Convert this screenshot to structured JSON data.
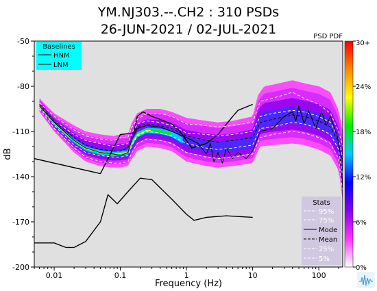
{
  "chart_data": {
    "type": "heatmap",
    "title_line1": "YM.NJ303.--.CH2 : 310 PSDs",
    "title_line2": "26-JUN-2021 / 02-JUL-2021",
    "xlabel": "Frequency (Hz)",
    "ylabel": "dB",
    "x_scale": "log",
    "xlim": [
      0.005,
      230
    ],
    "ylim": [
      -200,
      -50
    ],
    "x_ticks": [
      {
        "value": 0.01,
        "label": "0.01"
      },
      {
        "value": 0.1,
        "label": "0.1"
      },
      {
        "value": 1,
        "label": "1"
      },
      {
        "value": 10,
        "label": "10"
      },
      {
        "value": 100,
        "label": "100"
      }
    ],
    "y_ticks": [
      {
        "value": -50,
        "label": "-50"
      },
      {
        "value": -80,
        "label": "-80"
      },
      {
        "value": -110,
        "label": "-110"
      },
      {
        "value": -140,
        "label": "-140"
      },
      {
        "value": -170,
        "label": "-170"
      },
      {
        "value": -200,
        "label": "-200"
      }
    ],
    "grid": false,
    "background_color": "#e0e0e0",
    "colorbar": {
      "title": "PSD PDF",
      "tick_labels": [
        "0%",
        "6%",
        "12%",
        "18%",
        "24%",
        "30+"
      ],
      "colors": [
        "#ffffff",
        "#ff33ff",
        "#8800ee",
        "#0000ff",
        "#00ccff",
        "#00ee00",
        "#ffff00",
        "#ff8800",
        "#ff0000"
      ]
    },
    "baselines_legend": {
      "title": "Baselines",
      "entries": [
        "HNM",
        "LNM"
      ],
      "background": "#00ffff"
    },
    "stats_legend": {
      "title": "Stats",
      "entries": [
        "95%",
        "75%",
        "Mode",
        "Mean",
        "25%",
        "5%"
      ],
      "background": "#d0c8e0"
    },
    "series": [
      {
        "name": "HNM",
        "color": "#000000",
        "points": [
          [
            0.005,
            -128
          ],
          [
            0.05,
            -138
          ],
          [
            0.1,
            -112
          ],
          [
            0.16,
            -111
          ],
          [
            0.18,
            -100
          ],
          [
            0.22,
            -97
          ],
          [
            0.3,
            -100
          ],
          [
            0.4,
            -102
          ],
          [
            0.6,
            -105
          ],
          [
            0.8,
            -110
          ],
          [
            1,
            -116
          ],
          [
            1.2,
            -121
          ],
          [
            2,
            -118
          ],
          [
            3,
            -112
          ],
          [
            5,
            -100
          ],
          [
            6,
            -96
          ],
          [
            10,
            -92
          ]
        ]
      },
      {
        "name": "LNM",
        "color": "#000000",
        "points": [
          [
            0.005,
            -184
          ],
          [
            0.01,
            -184
          ],
          [
            0.015,
            -187
          ],
          [
            0.02,
            -187
          ],
          [
            0.03,
            -183
          ],
          [
            0.05,
            -170
          ],
          [
            0.065,
            -152
          ],
          [
            0.09,
            -158
          ],
          [
            0.13,
            -150
          ],
          [
            0.2,
            -141
          ],
          [
            0.3,
            -142
          ],
          [
            0.6,
            -155
          ],
          [
            1,
            -165
          ],
          [
            1.3,
            -169
          ],
          [
            2,
            -167
          ],
          [
            4,
            -166
          ],
          [
            10,
            -167
          ]
        ]
      },
      {
        "name": "95%",
        "color": "#ffffff",
        "points": [
          [
            0.006,
            -91
          ],
          [
            0.01,
            -100
          ],
          [
            0.02,
            -109
          ],
          [
            0.03,
            -113
          ],
          [
            0.05,
            -115
          ],
          [
            0.08,
            -116
          ],
          [
            0.1,
            -114
          ],
          [
            0.13,
            -114
          ],
          [
            0.15,
            -107
          ],
          [
            0.18,
            -102
          ],
          [
            0.25,
            -98
          ],
          [
            0.4,
            -98
          ],
          [
            0.6,
            -100
          ],
          [
            1,
            -105
          ],
          [
            2,
            -106
          ],
          [
            3,
            -107
          ],
          [
            5,
            -106
          ],
          [
            10,
            -104
          ],
          [
            13,
            -90
          ],
          [
            20,
            -88
          ],
          [
            40,
            -84
          ],
          [
            60,
            -88
          ],
          [
            100,
            -92
          ],
          [
            150,
            -98
          ],
          [
            200,
            -110
          ],
          [
            230,
            -120
          ]
        ]
      },
      {
        "name": "75%",
        "color": "#ffffff",
        "points": [
          [
            0.006,
            -92
          ],
          [
            0.01,
            -103
          ],
          [
            0.02,
            -112
          ],
          [
            0.03,
            -116
          ],
          [
            0.05,
            -118
          ],
          [
            0.08,
            -120
          ],
          [
            0.1,
            -119
          ],
          [
            0.13,
            -118
          ],
          [
            0.15,
            -111
          ],
          [
            0.18,
            -105
          ],
          [
            0.25,
            -103
          ],
          [
            0.4,
            -104
          ],
          [
            0.6,
            -106
          ],
          [
            1,
            -111
          ],
          [
            2,
            -112
          ],
          [
            3,
            -113
          ],
          [
            5,
            -112
          ],
          [
            10,
            -110
          ],
          [
            13,
            -100
          ],
          [
            20,
            -98
          ],
          [
            40,
            -96
          ],
          [
            60,
            -97
          ],
          [
            100,
            -100
          ],
          [
            150,
            -104
          ],
          [
            200,
            -115
          ],
          [
            230,
            -128
          ]
        ]
      },
      {
        "name": "Mode",
        "color": "#000000",
        "points": [
          [
            0.006,
            -93
          ],
          [
            0.01,
            -104
          ],
          [
            0.02,
            -116
          ],
          [
            0.03,
            -121
          ],
          [
            0.05,
            -124
          ],
          [
            0.08,
            -125
          ],
          [
            0.1,
            -126
          ],
          [
            0.13,
            -124
          ],
          [
            0.15,
            -115
          ],
          [
            0.18,
            -108
          ],
          [
            0.25,
            -106
          ],
          [
            0.4,
            -107
          ],
          [
            0.6,
            -110
          ],
          [
            1,
            -114
          ],
          [
            1.5,
            -118
          ],
          [
            2,
            -125
          ],
          [
            2.3,
            -118
          ],
          [
            2.6,
            -130
          ],
          [
            3,
            -124
          ],
          [
            3.5,
            -131
          ],
          [
            4,
            -121
          ],
          [
            5,
            -128
          ],
          [
            6,
            -124
          ],
          [
            8,
            -128
          ],
          [
            10,
            -123
          ],
          [
            13,
            -110
          ],
          [
            20,
            -108
          ],
          [
            30,
            -100
          ],
          [
            40,
            -97
          ],
          [
            45,
            -103
          ],
          [
            50,
            -93
          ],
          [
            60,
            -105
          ],
          [
            70,
            -96
          ],
          [
            90,
            -108
          ],
          [
            110,
            -97
          ],
          [
            130,
            -106
          ],
          [
            150,
            -100
          ],
          [
            170,
            -107
          ],
          [
            200,
            -116
          ],
          [
            230,
            -148
          ]
        ]
      },
      {
        "name": "Mean",
        "color": "#000000",
        "points": [
          [
            0.006,
            -92
          ],
          [
            0.01,
            -103
          ],
          [
            0.02,
            -114
          ],
          [
            0.03,
            -119
          ],
          [
            0.05,
            -122
          ],
          [
            0.08,
            -123
          ],
          [
            0.1,
            -123
          ],
          [
            0.13,
            -121
          ],
          [
            0.15,
            -113
          ],
          [
            0.18,
            -107
          ],
          [
            0.25,
            -105
          ],
          [
            0.4,
            -106
          ],
          [
            0.6,
            -108
          ],
          [
            1,
            -113
          ],
          [
            2,
            -116
          ],
          [
            3,
            -117
          ],
          [
            5,
            -116
          ],
          [
            10,
            -114
          ],
          [
            13,
            -104
          ],
          [
            20,
            -102
          ],
          [
            40,
            -99
          ],
          [
            60,
            -100
          ],
          [
            100,
            -103
          ],
          [
            150,
            -107
          ],
          [
            200,
            -117
          ],
          [
            230,
            -130
          ]
        ]
      },
      {
        "name": "25%",
        "color": "#ffffff",
        "points": [
          [
            0.006,
            -94
          ],
          [
            0.01,
            -106
          ],
          [
            0.02,
            -119
          ],
          [
            0.03,
            -124
          ],
          [
            0.05,
            -126
          ],
          [
            0.08,
            -127
          ],
          [
            0.1,
            -127
          ],
          [
            0.13,
            -126
          ],
          [
            0.15,
            -119
          ],
          [
            0.18,
            -113
          ],
          [
            0.25,
            -110
          ],
          [
            0.4,
            -111
          ],
          [
            0.6,
            -113
          ],
          [
            1,
            -118
          ],
          [
            2,
            -121
          ],
          [
            3,
            -122
          ],
          [
            5,
            -121
          ],
          [
            10,
            -119
          ],
          [
            13,
            -108
          ],
          [
            20,
            -107
          ],
          [
            40,
            -104
          ],
          [
            60,
            -105
          ],
          [
            100,
            -108
          ],
          [
            150,
            -112
          ],
          [
            200,
            -122
          ],
          [
            230,
            -140
          ]
        ]
      },
      {
        "name": "5%",
        "color": "#ffffff",
        "points": [
          [
            0.006,
            -95
          ],
          [
            0.01,
            -108
          ],
          [
            0.02,
            -121
          ],
          [
            0.03,
            -127
          ],
          [
            0.05,
            -130
          ],
          [
            0.08,
            -131
          ],
          [
            0.1,
            -131
          ],
          [
            0.13,
            -130
          ],
          [
            0.15,
            -124
          ],
          [
            0.18,
            -118
          ],
          [
            0.25,
            -115
          ],
          [
            0.4,
            -116
          ],
          [
            0.6,
            -118
          ],
          [
            1,
            -124
          ],
          [
            2,
            -127
          ],
          [
            3,
            -128
          ],
          [
            5,
            -127
          ],
          [
            10,
            -125
          ],
          [
            13,
            -114
          ],
          [
            20,
            -112
          ],
          [
            40,
            -110
          ],
          [
            60,
            -111
          ],
          [
            100,
            -114
          ],
          [
            150,
            -118
          ],
          [
            200,
            -128
          ],
          [
            230,
            -150
          ]
        ]
      }
    ],
    "pdf_density": {
      "upper_envelope": [
        [
          0.006,
          -88
        ],
        [
          0.01,
          -98
        ],
        [
          0.02,
          -106
        ],
        [
          0.03,
          -110
        ],
        [
          0.05,
          -112
        ],
        [
          0.08,
          -113
        ],
        [
          0.1,
          -112
        ],
        [
          0.13,
          -112
        ],
        [
          0.15,
          -104
        ],
        [
          0.18,
          -98
        ],
        [
          0.25,
          -95
        ],
        [
          0.4,
          -95
        ],
        [
          0.6,
          -97
        ],
        [
          1,
          -101
        ],
        [
          2,
          -103
        ],
        [
          3,
          -104
        ],
        [
          5,
          -103
        ],
        [
          10,
          -100
        ],
        [
          12,
          -86
        ],
        [
          15,
          -80
        ],
        [
          20,
          -79
        ],
        [
          40,
          -76
        ],
        [
          60,
          -78
        ],
        [
          100,
          -80
        ],
        [
          150,
          -84
        ],
        [
          200,
          -96
        ],
        [
          230,
          -110
        ]
      ],
      "lower_envelope": [
        [
          0.006,
          -97
        ],
        [
          0.01,
          -110
        ],
        [
          0.02,
          -124
        ],
        [
          0.03,
          -130
        ],
        [
          0.05,
          -133
        ],
        [
          0.08,
          -134
        ],
        [
          0.1,
          -134
        ],
        [
          0.13,
          -133
        ],
        [
          0.15,
          -128
        ],
        [
          0.18,
          -123
        ],
        [
          0.25,
          -120
        ],
        [
          0.4,
          -121
        ],
        [
          0.6,
          -123
        ],
        [
          1,
          -130
        ],
        [
          2,
          -133
        ],
        [
          3,
          -134
        ],
        [
          5,
          -133
        ],
        [
          10,
          -131
        ],
        [
          13,
          -120
        ],
        [
          20,
          -119
        ],
        [
          40,
          -118
        ],
        [
          60,
          -119
        ],
        [
          100,
          -122
        ],
        [
          150,
          -126
        ],
        [
          200,
          -136
        ],
        [
          230,
          -156
        ]
      ]
    }
  }
}
